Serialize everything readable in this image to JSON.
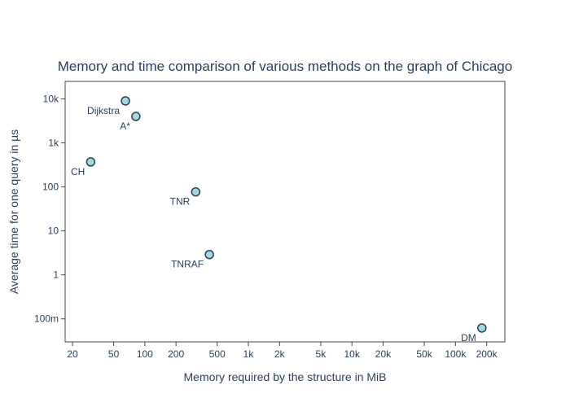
{
  "chart_data": {
    "type": "scatter",
    "title": "Memory and time comparison of various methods on the graph of Chicago",
    "xlabel": "Memory required by the structure in MiB",
    "ylabel": "Average time for one query in µs",
    "x_scale": "log",
    "y_scale": "log",
    "xlim": [
      17,
      300000
    ],
    "ylim": [
      0.03,
      25000
    ],
    "grid": false,
    "legend": "none",
    "x_ticks": [
      {
        "value": 20,
        "label": "20"
      },
      {
        "value": 50,
        "label": "50"
      },
      {
        "value": 100,
        "label": "100"
      },
      {
        "value": 200,
        "label": "200"
      },
      {
        "value": 500,
        "label": "500"
      },
      {
        "value": 1000,
        "label": "1k"
      },
      {
        "value": 2000,
        "label": "2k"
      },
      {
        "value": 5000,
        "label": "5k"
      },
      {
        "value": 10000,
        "label": "10k"
      },
      {
        "value": 20000,
        "label": "20k"
      },
      {
        "value": 50000,
        "label": "50k"
      },
      {
        "value": 100000,
        "label": "100k"
      },
      {
        "value": 200000,
        "label": "200k"
      }
    ],
    "y_ticks": [
      {
        "value": 0.1,
        "label": "100m"
      },
      {
        "value": 1,
        "label": "1"
      },
      {
        "value": 10,
        "label": "10"
      },
      {
        "value": 100,
        "label": "100"
      },
      {
        "value": 1000,
        "label": "1k"
      },
      {
        "value": 10000,
        "label": "10k"
      }
    ],
    "points": [
      {
        "label": "Dijkstra",
        "x": 65,
        "y": 9000,
        "label_pos": "bottom-left"
      },
      {
        "label": "A*",
        "x": 82,
        "y": 4000,
        "label_pos": "bottom-left"
      },
      {
        "label": "CH",
        "x": 30,
        "y": 370,
        "label_pos": "bottom-left"
      },
      {
        "label": "TNR",
        "x": 310,
        "y": 77,
        "label_pos": "bottom-left"
      },
      {
        "label": "TNRAF",
        "x": 420,
        "y": 2.9,
        "label_pos": "bottom-left"
      },
      {
        "label": "DM",
        "x": 180000,
        "y": 0.062,
        "label_pos": "bottom-left"
      }
    ],
    "marker_fill": "#a6d8db",
    "marker_stroke": "#2a3f5f"
  }
}
